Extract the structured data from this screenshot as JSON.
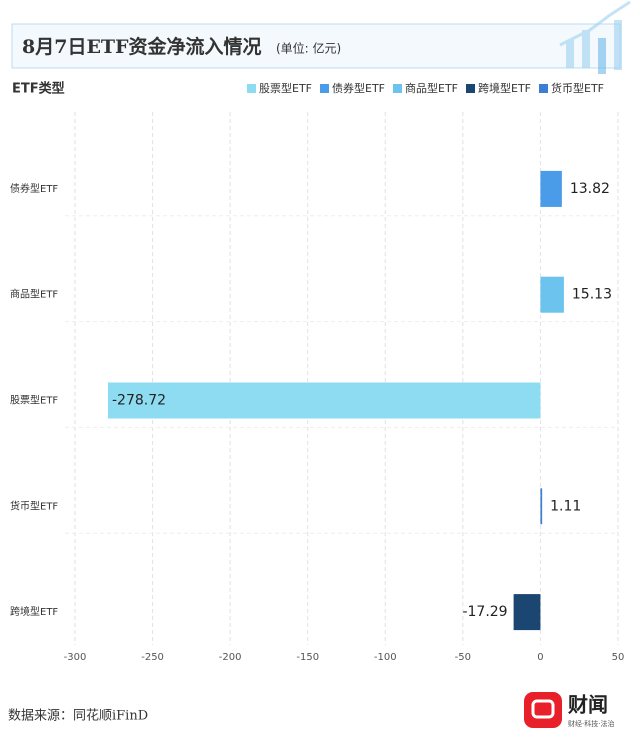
{
  "chart_data": {
    "type": "bar",
    "orientation": "horizontal",
    "title": "8月7日ETF资金净流入情况",
    "subtitle": "(单位: 亿元)",
    "y_axis_title": "ETF类型",
    "source": "数据来源：同花顺iFinD",
    "logo": "财闻",
    "logo_tagline": "财经·科技·法治",
    "categories": [
      "债券型ETF",
      "商品型ETF",
      "股票型ETF",
      "货币型ETF",
      "跨境型ETF"
    ],
    "series": [
      {
        "name": "股票型ETF",
        "color": "#8edcf2",
        "values": [
          null,
          null,
          -278.72,
          null,
          null
        ]
      },
      {
        "name": "债券型ETF",
        "color": "#4a9be8",
        "values": [
          13.82,
          null,
          null,
          null,
          null
        ]
      },
      {
        "name": "商品型ETF",
        "color": "#6bc3ee",
        "values": [
          null,
          15.13,
          null,
          null,
          null
        ]
      },
      {
        "name": "跨境型ETF",
        "color": "#1c4672",
        "values": [
          null,
          null,
          null,
          null,
          -17.29
        ]
      },
      {
        "name": "货币型ETF",
        "color": "#3b7fd4",
        "values": [
          null,
          null,
          null,
          1.11,
          null
        ]
      }
    ],
    "xlim": [
      -300,
      50
    ],
    "xticks": [
      -300,
      -250,
      -200,
      -150,
      -100,
      -50,
      0,
      50
    ],
    "grid": true,
    "legend": "top-right"
  }
}
